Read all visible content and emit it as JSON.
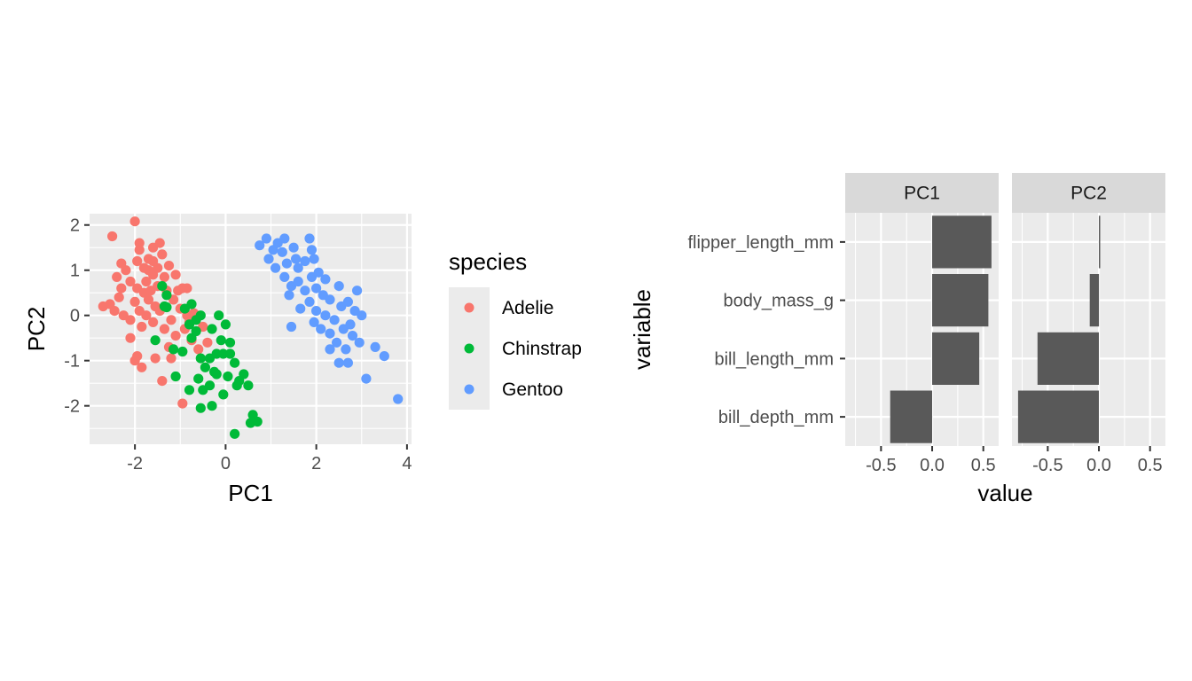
{
  "chart_data": [
    {
      "type": "scatter",
      "xlabel": "PC1",
      "ylabel": "PC2",
      "xlim": [
        -3.0,
        4.1
      ],
      "ylim": [
        -2.85,
        2.25
      ],
      "x_ticks": [
        -2,
        0,
        2,
        4
      ],
      "y_ticks": [
        -2,
        -1,
        0,
        1,
        2
      ],
      "x_tick_labels": [
        "-2",
        "0",
        "2",
        "4"
      ],
      "y_tick_labels": [
        "-2",
        "-1",
        "0",
        "1",
        "2"
      ],
      "grid": true,
      "legend": {
        "title": "species",
        "placement": "right"
      },
      "series": [
        {
          "name": "Adelie",
          "color": "#F8766D",
          "points": [
            [
              -2.0,
              2.08
            ],
            [
              -2.5,
              1.75
            ],
            [
              -1.9,
              1.6
            ],
            [
              -1.6,
              1.5
            ],
            [
              -1.4,
              1.35
            ],
            [
              -2.3,
              1.15
            ],
            [
              -2.2,
              1.0
            ],
            [
              -2.4,
              0.85
            ],
            [
              -1.9,
              1.45
            ],
            [
              -1.7,
              1.25
            ],
            [
              -1.8,
              1.05
            ],
            [
              -1.6,
              0.9
            ],
            [
              -2.1,
              0.75
            ],
            [
              -1.95,
              0.6
            ],
            [
              -1.8,
              0.5
            ],
            [
              -1.7,
              0.35
            ],
            [
              -1.55,
              0.2
            ],
            [
              -1.9,
              0.1
            ],
            [
              -2.1,
              -0.1
            ],
            [
              -2.35,
              0.4
            ],
            [
              -2.55,
              0.25
            ],
            [
              -2.7,
              0.2
            ],
            [
              -2.45,
              0.1
            ],
            [
              -2.25,
              0.0
            ],
            [
              -2.0,
              0.3
            ],
            [
              -1.75,
              0.0
            ],
            [
              -1.6,
              -0.15
            ],
            [
              -1.85,
              -0.25
            ],
            [
              -1.5,
              0.65
            ],
            [
              -1.3,
              0.55
            ],
            [
              -1.15,
              0.35
            ],
            [
              -1.0,
              0.15
            ],
            [
              -0.85,
              0.0
            ],
            [
              -1.2,
              -0.1
            ],
            [
              -1.35,
              -0.3
            ],
            [
              -1.1,
              -0.45
            ],
            [
              -0.9,
              -0.3
            ],
            [
              -0.75,
              -0.55
            ],
            [
              -0.6,
              -0.75
            ],
            [
              -0.4,
              -0.6
            ],
            [
              -0.5,
              -0.25
            ],
            [
              -0.7,
              0.05
            ],
            [
              -1.5,
              1.05
            ],
            [
              -1.35,
              0.85
            ],
            [
              -1.25,
              1.1
            ],
            [
              -1.1,
              0.9
            ],
            [
              -1.75,
              0.75
            ],
            [
              -1.95,
              -0.9
            ],
            [
              -2.0,
              -1.0
            ],
            [
              -1.55,
              -0.95
            ],
            [
              -1.4,
              -1.45
            ],
            [
              -1.2,
              -0.95
            ],
            [
              -0.95,
              -1.95
            ],
            [
              -1.85,
              -1.15
            ],
            [
              -2.1,
              -0.5
            ],
            [
              -1.65,
              0.55
            ],
            [
              -1.45,
              0.1
            ],
            [
              -1.25,
              -0.7
            ],
            [
              -0.95,
              0.6
            ],
            [
              -0.8,
              -0.15
            ],
            [
              -1.6,
              1.2
            ],
            [
              -1.95,
              1.2
            ],
            [
              -2.3,
              0.6
            ],
            [
              -1.45,
              1.6
            ],
            [
              -1.7,
              1.0
            ],
            [
              -1.05,
              0.55
            ],
            [
              -0.85,
              0.6
            ]
          ]
        },
        {
          "name": "Chinstrap",
          "color": "#00BA38",
          "points": [
            [
              -1.4,
              0.65
            ],
            [
              -1.3,
              0.45
            ],
            [
              -1.35,
              0.2
            ],
            [
              -1.3,
              0.18
            ],
            [
              -0.9,
              0.15
            ],
            [
              -0.55,
              0.0
            ],
            [
              -0.8,
              -0.2
            ],
            [
              -0.65,
              -0.35
            ],
            [
              -1.15,
              -0.75
            ],
            [
              -0.95,
              -0.8
            ],
            [
              -0.75,
              -0.5
            ],
            [
              -0.55,
              -0.95
            ],
            [
              -0.45,
              -1.15
            ],
            [
              -0.35,
              -0.95
            ],
            [
              -0.2,
              -0.85
            ],
            [
              -0.3,
              -0.3
            ],
            [
              -0.15,
              0.0
            ],
            [
              0.0,
              -0.2
            ],
            [
              -0.1,
              -0.55
            ],
            [
              0.1,
              -0.6
            ],
            [
              -0.6,
              -1.4
            ],
            [
              -0.8,
              -1.65
            ],
            [
              -0.5,
              -1.65
            ],
            [
              -0.35,
              -1.55
            ],
            [
              -0.2,
              -1.3
            ],
            [
              0.05,
              -1.35
            ],
            [
              0.25,
              -1.55
            ],
            [
              0.4,
              -1.3
            ],
            [
              0.2,
              -1.05
            ],
            [
              0.3,
              -1.45
            ],
            [
              0.5,
              -1.55
            ],
            [
              -0.05,
              -1.75
            ],
            [
              -0.3,
              -2.0
            ],
            [
              -0.55,
              -2.05
            ],
            [
              0.6,
              -2.2
            ],
            [
              0.7,
              -2.35
            ],
            [
              0.55,
              -2.38
            ],
            [
              0.2,
              -2.62
            ],
            [
              -0.05,
              -0.85
            ],
            [
              -1.1,
              -1.35
            ],
            [
              -0.65,
              -0.1
            ],
            [
              -0.75,
              0.25
            ],
            [
              -1.55,
              -0.55
            ],
            [
              -0.25,
              -1.25
            ],
            [
              0.1,
              -0.85
            ]
          ]
        },
        {
          "name": "Gentoo",
          "color": "#619CFF",
          "points": [
            [
              0.75,
              1.55
            ],
            [
              0.9,
              1.7
            ],
            [
              1.15,
              1.6
            ],
            [
              1.3,
              1.7
            ],
            [
              1.05,
              1.45
            ],
            [
              1.25,
              1.4
            ],
            [
              1.5,
              1.5
            ],
            [
              1.85,
              1.7
            ],
            [
              1.9,
              1.45
            ],
            [
              0.95,
              1.25
            ],
            [
              1.1,
              1.05
            ],
            [
              1.35,
              1.15
            ],
            [
              1.55,
              1.25
            ],
            [
              1.75,
              1.2
            ],
            [
              1.95,
              1.25
            ],
            [
              1.3,
              0.85
            ],
            [
              1.45,
              0.65
            ],
            [
              1.6,
              0.75
            ],
            [
              1.75,
              0.55
            ],
            [
              1.9,
              0.85
            ],
            [
              2.05,
              0.95
            ],
            [
              2.2,
              0.8
            ],
            [
              2.0,
              0.6
            ],
            [
              2.15,
              0.45
            ],
            [
              2.3,
              0.35
            ],
            [
              1.85,
              0.3
            ],
            [
              1.65,
              0.15
            ],
            [
              2.0,
              0.1
            ],
            [
              2.2,
              0.0
            ],
            [
              2.4,
              -0.1
            ],
            [
              2.55,
              0.2
            ],
            [
              2.7,
              0.3
            ],
            [
              2.85,
              0.1
            ],
            [
              3.0,
              0.0
            ],
            [
              2.6,
              -0.3
            ],
            [
              2.8,
              -0.45
            ],
            [
              2.95,
              -0.6
            ],
            [
              2.65,
              -0.75
            ],
            [
              2.45,
              -0.6
            ],
            [
              2.3,
              -0.4
            ],
            [
              2.1,
              -0.3
            ],
            [
              1.95,
              -0.15
            ],
            [
              2.7,
              -1.05
            ],
            [
              2.5,
              -1.05
            ],
            [
              3.3,
              -0.7
            ],
            [
              3.5,
              -0.9
            ],
            [
              3.1,
              -1.4
            ],
            [
              3.8,
              -1.85
            ],
            [
              1.45,
              -0.25
            ],
            [
              2.5,
              0.65
            ],
            [
              1.6,
              1.05
            ],
            [
              1.4,
              0.45
            ],
            [
              2.9,
              0.55
            ],
            [
              2.75,
              -0.2
            ],
            [
              2.3,
              -0.75
            ]
          ]
        }
      ]
    },
    {
      "type": "bar",
      "orientation": "horizontal",
      "facets": [
        "PC1",
        "PC2"
      ],
      "categories": [
        "flipper_length_mm",
        "body_mass_g",
        "bill_length_mm",
        "bill_depth_mm"
      ],
      "series": [
        {
          "name": "PC1",
          "values": [
            0.58,
            0.55,
            0.46,
            -0.41
          ]
        },
        {
          "name": "PC2",
          "values": [
            0.01,
            -0.09,
            -0.6,
            -0.79
          ]
        }
      ],
      "xlabel": "value",
      "ylabel": "variable",
      "xlim": [
        -0.85,
        0.65
      ],
      "x_ticks": [
        -0.5,
        0.0,
        0.5
      ],
      "x_tick_labels": [
        "-0.5",
        "0.0",
        "0.5"
      ],
      "bar_color": "#595959",
      "grid": true
    }
  ]
}
